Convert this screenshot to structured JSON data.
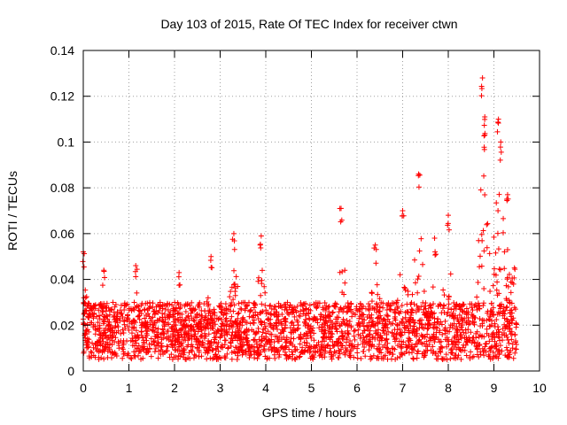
{
  "chart_data": {
    "type": "scatter",
    "title": "Day 103 of 2015, Rate Of TEC Index for receiver ctwn",
    "xlabel": "GPS time / hours",
    "ylabel": "ROTI / TECUs",
    "xlim": [
      0,
      10
    ],
    "ylim": [
      0,
      0.14
    ],
    "xticks": [
      "0",
      "1",
      "2",
      "3",
      "4",
      "5",
      "6",
      "7",
      "8",
      "9",
      "10"
    ],
    "yticks": [
      "0",
      "0.02",
      "0.04",
      "0.06",
      "0.08",
      "0.1",
      "0.12",
      "0.14"
    ],
    "grid": true,
    "marker": "plus",
    "color": "#ff0000",
    "series": [
      {
        "name": "ROTI",
        "x_start": 0.0,
        "x_end": 9.5,
        "baseline_range": [
          0.005,
          0.03
        ],
        "notable_points": [
          {
            "x": 0.0,
            "y": 0.052
          },
          {
            "x": 0.45,
            "y": 0.044
          },
          {
            "x": 1.15,
            "y": 0.046
          },
          {
            "x": 2.1,
            "y": 0.043
          },
          {
            "x": 2.8,
            "y": 0.05
          },
          {
            "x": 3.3,
            "y": 0.06
          },
          {
            "x": 3.9,
            "y": 0.059
          },
          {
            "x": 5.65,
            "y": 0.071
          },
          {
            "x": 6.4,
            "y": 0.055
          },
          {
            "x": 7.0,
            "y": 0.07
          },
          {
            "x": 7.35,
            "y": 0.086
          },
          {
            "x": 7.7,
            "y": 0.058
          },
          {
            "x": 8.0,
            "y": 0.068
          },
          {
            "x": 8.75,
            "y": 0.128
          },
          {
            "x": 8.8,
            "y": 0.111
          },
          {
            "x": 8.8,
            "y": 0.103
          },
          {
            "x": 9.1,
            "y": 0.11
          },
          {
            "x": 9.15,
            "y": 0.1
          },
          {
            "x": 9.3,
            "y": 0.077
          },
          {
            "x": 9.45,
            "y": 0.045
          }
        ]
      }
    ]
  }
}
